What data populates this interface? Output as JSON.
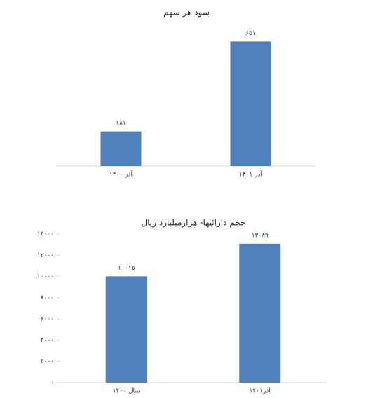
{
  "chart_data": [
    {
      "type": "bar",
      "title": "سود هر سهم",
      "categories": [
        "آذر ۱۴۰۰",
        "آذر ۱۴۰۱"
      ],
      "values": [
        181,
        651
      ],
      "value_labels": [
        "۱۸۱",
        "۶۵۱"
      ],
      "color": "#4f81bd",
      "ylim": [
        0,
        700
      ]
    },
    {
      "type": "bar",
      "title": "حجم دارائیها- هزارمیلیارد ریال",
      "categories": [
        "سال ۱۴۰۰",
        "آذر۱۴۰۱"
      ],
      "values": [
        10015,
        13089
      ],
      "value_labels": [
        "۱۰۰۱۵",
        "۱۳۰۸۹"
      ],
      "color": "#4f81bd",
      "ylim": [
        0,
        14000
      ],
      "yticks": [
        {
          "value": 0,
          "label": "۰"
        },
        {
          "value": 2000,
          "label": "۲۰۰۰"
        },
        {
          "value": 4000,
          "label": "۴۰۰۰"
        },
        {
          "value": 6000,
          "label": "۶۰۰۰"
        },
        {
          "value": 8000,
          "label": "۸۰۰۰"
        },
        {
          "value": 10000,
          "label": "۱۰۰۰۰"
        },
        {
          "value": 12000,
          "label": "۱۲۰۰۰"
        },
        {
          "value": 14000,
          "label": "۱۴۰۰۰"
        }
      ]
    }
  ]
}
